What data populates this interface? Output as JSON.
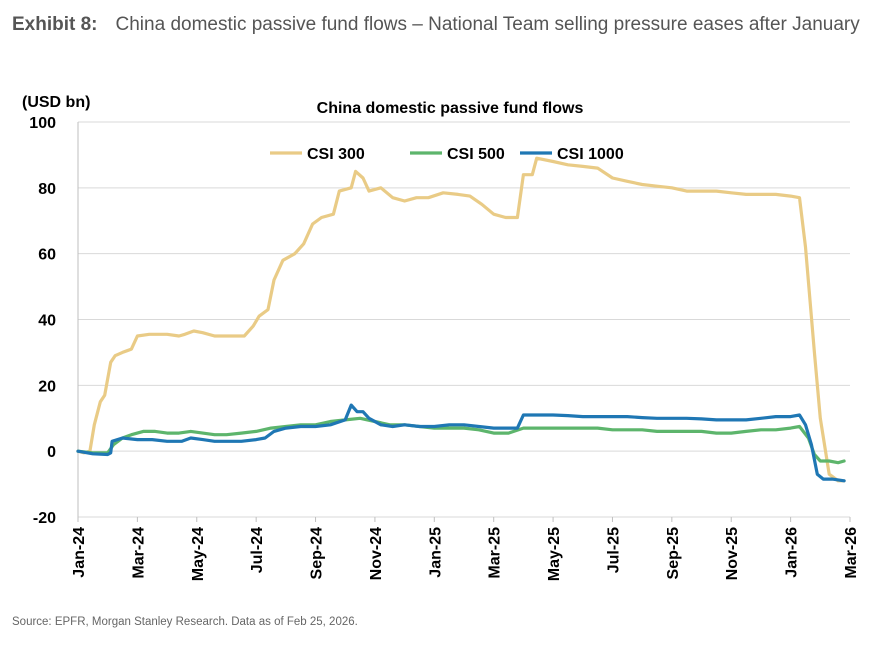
{
  "exhibit": {
    "label": "Exhibit 8:",
    "title": "China domestic passive fund flows – National Team selling pressure eases after January"
  },
  "source": "Source: EPFR, Morgan Stanley Research. Data as of Feb 25, 2026.",
  "chart_data": {
    "type": "line",
    "title": "China domestic passive fund flows",
    "ylabel": "(USD bn)",
    "xlabel": "",
    "ylim": [
      -20,
      100
    ],
    "yticks": [
      -20,
      0,
      20,
      40,
      60,
      80,
      100
    ],
    "grid": true,
    "legend_position": "top-right",
    "xrange": [
      0,
      26
    ],
    "x_ticks": [
      {
        "m": 0,
        "label": "Jan-24"
      },
      {
        "m": 2,
        "label": "Mar-24"
      },
      {
        "m": 4,
        "label": "May-24"
      },
      {
        "m": 6,
        "label": "Jul-24"
      },
      {
        "m": 8,
        "label": "Sep-24"
      },
      {
        "m": 10,
        "label": "Nov-24"
      },
      {
        "m": 12,
        "label": "Jan-25"
      },
      {
        "m": 14,
        "label": "Mar-25"
      },
      {
        "m": 16,
        "label": "May-25"
      },
      {
        "m": 18,
        "label": "Jul-25"
      },
      {
        "m": 20,
        "label": "Sep-25"
      },
      {
        "m": 22,
        "label": "Nov-25"
      },
      {
        "m": 24,
        "label": "Jan-26"
      },
      {
        "m": 26,
        "label": "Mar-26"
      }
    ],
    "x_unit": "months since Jan-2024",
    "series": [
      {
        "name": "CSI 300",
        "color": "#E9CB86",
        "points": [
          [
            0,
            0
          ],
          [
            0.2,
            -0.5
          ],
          [
            0.4,
            0
          ],
          [
            0.55,
            8
          ],
          [
            0.75,
            15
          ],
          [
            0.9,
            17
          ],
          [
            1.1,
            27
          ],
          [
            1.25,
            29
          ],
          [
            1.5,
            30
          ],
          [
            1.8,
            31
          ],
          [
            2.0,
            35
          ],
          [
            2.4,
            35.5
          ],
          [
            3.0,
            35.5
          ],
          [
            3.4,
            35
          ],
          [
            3.6,
            35.5
          ],
          [
            3.9,
            36.5
          ],
          [
            4.2,
            36
          ],
          [
            4.6,
            35
          ],
          [
            5.0,
            35
          ],
          [
            5.6,
            35
          ],
          [
            5.9,
            38
          ],
          [
            6.1,
            41
          ],
          [
            6.4,
            43
          ],
          [
            6.6,
            52
          ],
          [
            6.9,
            58
          ],
          [
            7.3,
            60
          ],
          [
            7.6,
            63
          ],
          [
            7.9,
            69
          ],
          [
            8.2,
            71
          ],
          [
            8.6,
            72
          ],
          [
            8.8,
            79
          ],
          [
            9.2,
            80
          ],
          [
            9.35,
            85
          ],
          [
            9.6,
            83
          ],
          [
            9.8,
            79
          ],
          [
            10.2,
            80
          ],
          [
            10.6,
            77
          ],
          [
            11.0,
            76
          ],
          [
            11.4,
            77
          ],
          [
            11.8,
            77
          ],
          [
            12.3,
            78.5
          ],
          [
            12.8,
            78
          ],
          [
            13.2,
            77.5
          ],
          [
            13.6,
            75
          ],
          [
            14.0,
            72
          ],
          [
            14.4,
            71
          ],
          [
            14.8,
            71
          ],
          [
            15.0,
            84
          ],
          [
            15.3,
            84
          ],
          [
            15.45,
            89
          ],
          [
            16.0,
            88
          ],
          [
            16.5,
            87
          ],
          [
            17.0,
            86.5
          ],
          [
            17.5,
            86
          ],
          [
            18.0,
            83
          ],
          [
            18.5,
            82
          ],
          [
            19.0,
            81
          ],
          [
            19.5,
            80.5
          ],
          [
            20.0,
            80
          ],
          [
            20.5,
            79
          ],
          [
            21.0,
            79
          ],
          [
            21.5,
            79
          ],
          [
            22.0,
            78.5
          ],
          [
            22.5,
            78
          ],
          [
            23.0,
            78
          ],
          [
            23.5,
            78
          ],
          [
            24.0,
            77.5
          ],
          [
            24.3,
            77
          ],
          [
            24.5,
            62
          ],
          [
            24.8,
            30
          ],
          [
            25.0,
            10
          ],
          [
            25.3,
            -7
          ],
          [
            25.6,
            -9
          ],
          [
            25.8,
            -9
          ]
        ]
      },
      {
        "name": "CSI 500",
        "color": "#5DB56C",
        "points": [
          [
            0,
            0
          ],
          [
            0.5,
            -0.5
          ],
          [
            1.0,
            -0.5
          ],
          [
            1.2,
            2
          ],
          [
            1.5,
            4
          ],
          [
            1.8,
            5
          ],
          [
            2.2,
            6
          ],
          [
            2.6,
            6
          ],
          [
            3.0,
            5.5
          ],
          [
            3.4,
            5.5
          ],
          [
            3.8,
            6
          ],
          [
            4.2,
            5.5
          ],
          [
            4.6,
            5
          ],
          [
            5.0,
            5
          ],
          [
            5.5,
            5.5
          ],
          [
            6.0,
            6
          ],
          [
            6.5,
            7
          ],
          [
            7.0,
            7.5
          ],
          [
            7.5,
            8
          ],
          [
            8.0,
            8
          ],
          [
            8.5,
            9
          ],
          [
            9.0,
            9.5
          ],
          [
            9.5,
            10
          ],
          [
            10.0,
            9
          ],
          [
            10.5,
            8
          ],
          [
            11.0,
            8
          ],
          [
            11.5,
            7.5
          ],
          [
            12.0,
            7
          ],
          [
            12.5,
            7
          ],
          [
            13.0,
            7
          ],
          [
            13.5,
            6.5
          ],
          [
            14.0,
            5.5
          ],
          [
            14.5,
            5.5
          ],
          [
            15.0,
            7
          ],
          [
            15.5,
            7
          ],
          [
            16.0,
            7
          ],
          [
            16.5,
            7
          ],
          [
            17.0,
            7
          ],
          [
            17.5,
            7
          ],
          [
            18.0,
            6.5
          ],
          [
            18.5,
            6.5
          ],
          [
            19.0,
            6.5
          ],
          [
            19.5,
            6
          ],
          [
            20.0,
            6
          ],
          [
            20.5,
            6
          ],
          [
            21.0,
            6
          ],
          [
            21.5,
            5.5
          ],
          [
            22.0,
            5.5
          ],
          [
            22.5,
            6
          ],
          [
            23.0,
            6.5
          ],
          [
            23.5,
            6.5
          ],
          [
            24.0,
            7
          ],
          [
            24.3,
            7.5
          ],
          [
            24.6,
            4
          ],
          [
            24.8,
            -1
          ],
          [
            25.0,
            -3
          ],
          [
            25.3,
            -3
          ],
          [
            25.6,
            -3.5
          ],
          [
            25.8,
            -3
          ]
        ]
      },
      {
        "name": "CSI 1000",
        "color": "#1F77B4",
        "points": [
          [
            0,
            0
          ],
          [
            0.5,
            -0.8
          ],
          [
            1.0,
            -1
          ],
          [
            1.1,
            -0.5
          ],
          [
            1.15,
            3
          ],
          [
            1.5,
            4
          ],
          [
            2.0,
            3.5
          ],
          [
            2.5,
            3.5
          ],
          [
            3.0,
            3
          ],
          [
            3.5,
            3
          ],
          [
            3.8,
            4
          ],
          [
            4.2,
            3.5
          ],
          [
            4.6,
            3
          ],
          [
            5.0,
            3
          ],
          [
            5.5,
            3
          ],
          [
            6.0,
            3.5
          ],
          [
            6.3,
            4
          ],
          [
            6.6,
            6
          ],
          [
            7.0,
            7
          ],
          [
            7.5,
            7.5
          ],
          [
            8.0,
            7.5
          ],
          [
            8.5,
            8
          ],
          [
            9.0,
            9.5
          ],
          [
            9.2,
            14
          ],
          [
            9.4,
            12
          ],
          [
            9.6,
            12
          ],
          [
            9.8,
            10
          ],
          [
            10.2,
            8
          ],
          [
            10.6,
            7.5
          ],
          [
            11.0,
            8
          ],
          [
            11.5,
            7.5
          ],
          [
            12.0,
            7.5
          ],
          [
            12.5,
            8
          ],
          [
            13.0,
            8
          ],
          [
            13.5,
            7.5
          ],
          [
            14.0,
            7
          ],
          [
            14.5,
            7
          ],
          [
            14.8,
            7
          ],
          [
            15.0,
            11
          ],
          [
            15.5,
            11
          ],
          [
            16.0,
            11
          ],
          [
            16.5,
            10.8
          ],
          [
            17.0,
            10.5
          ],
          [
            17.5,
            10.5
          ],
          [
            18.0,
            10.5
          ],
          [
            18.5,
            10.5
          ],
          [
            19.0,
            10.2
          ],
          [
            19.5,
            10
          ],
          [
            20.0,
            10
          ],
          [
            20.5,
            10
          ],
          [
            21.0,
            9.8
          ],
          [
            21.5,
            9.5
          ],
          [
            22.0,
            9.5
          ],
          [
            22.5,
            9.5
          ],
          [
            23.0,
            10
          ],
          [
            23.5,
            10.5
          ],
          [
            24.0,
            10.5
          ],
          [
            24.3,
            11
          ],
          [
            24.5,
            8
          ],
          [
            24.7,
            2
          ],
          [
            24.9,
            -7
          ],
          [
            25.1,
            -8.5
          ],
          [
            25.4,
            -8.5
          ],
          [
            25.8,
            -9
          ]
        ]
      }
    ]
  }
}
